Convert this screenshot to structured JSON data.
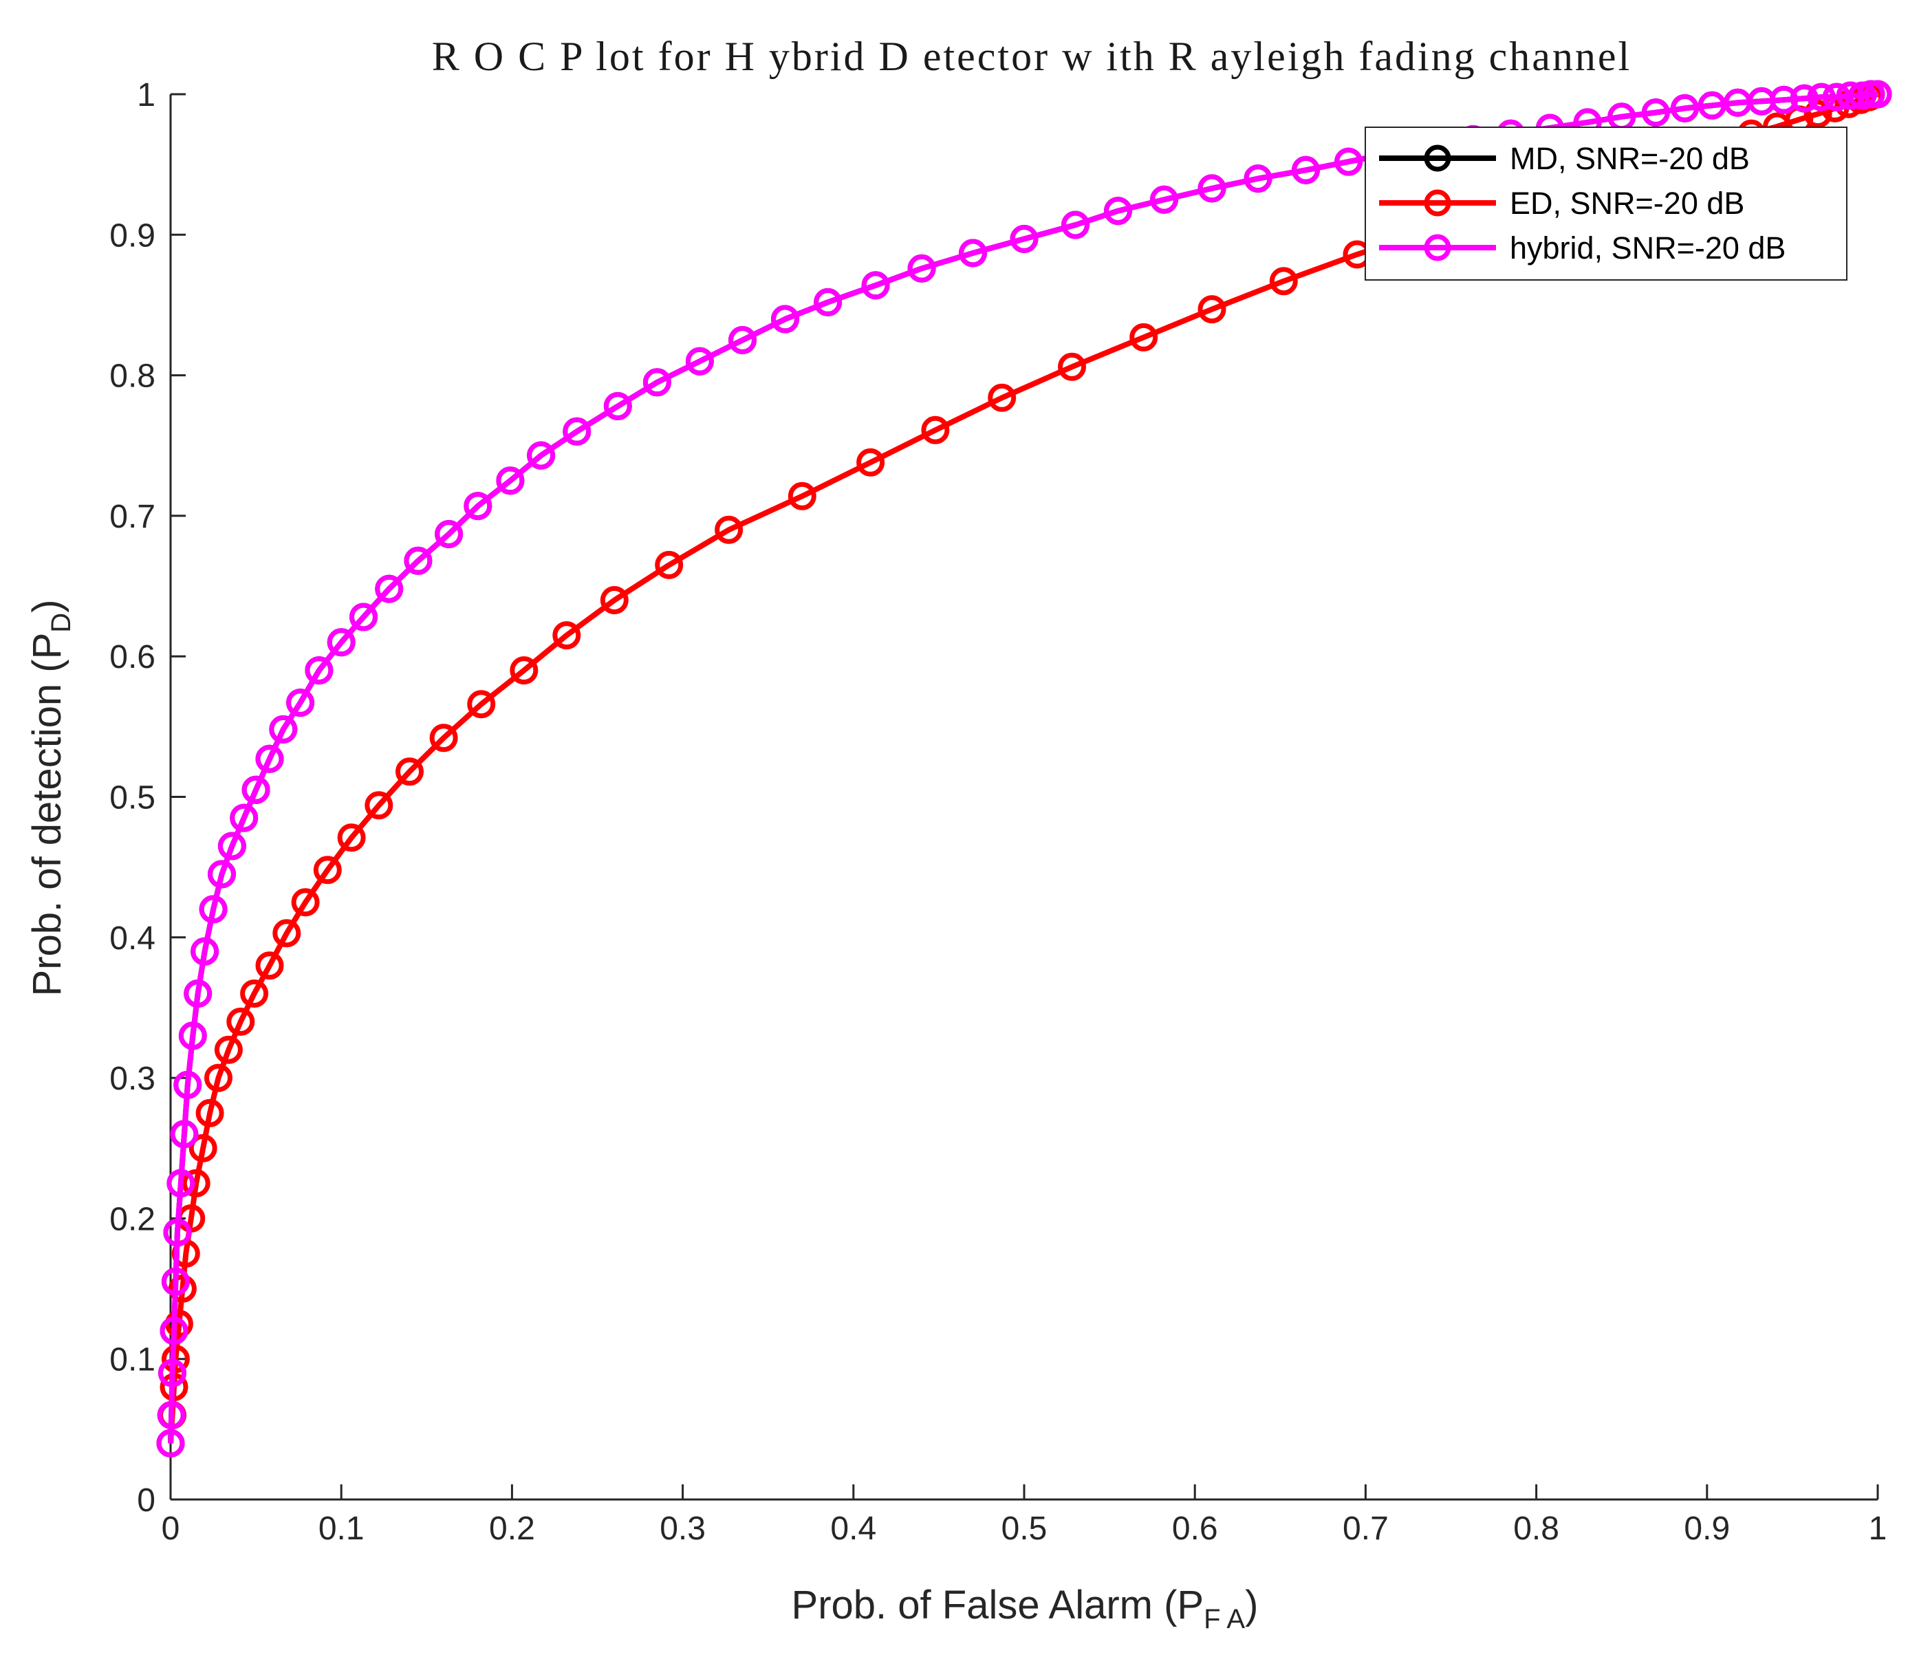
{
  "chart_data": {
    "type": "line",
    "title": "R O C  P lot for H ybrid  D etector w ith  R ayleigh  fading  channel",
    "xlabel": {
      "text": "Prob. of False Alarm (P",
      "sub": "F A",
      "suffix": ")"
    },
    "ylabel": {
      "text": "Prob. of detection (P",
      "sub": "D",
      "suffix": ")"
    },
    "xlim": [
      0,
      1
    ],
    "ylim": [
      0,
      1
    ],
    "xticks": [
      "0",
      "0.1",
      "0.2",
      "0.3",
      "0.4",
      "0.5",
      "0.6",
      "0.7",
      "0.8",
      "0.9",
      "1"
    ],
    "yticks": [
      "0",
      "0.1",
      "0.2",
      "0.3",
      "0.4",
      "0.5",
      "0.6",
      "0.7",
      "0.8",
      "0.9",
      "1"
    ],
    "grid": false,
    "legend_position": "top-right",
    "series": [
      {
        "name": "MD, SNR=-20 dB",
        "color": "#000000",
        "marker": "circle",
        "x": [
          0.0,
          0.0005,
          0.001,
          0.002,
          0.003,
          0.004,
          0.006,
          0.008,
          0.01,
          0.013,
          0.016,
          0.02,
          0.025,
          0.03,
          0.036,
          0.043,
          0.05,
          0.058,
          0.066,
          0.076,
          0.087,
          0.1,
          0.113,
          0.128,
          0.145,
          0.163,
          0.18,
          0.199,
          0.217,
          0.238,
          0.262,
          0.285,
          0.31,
          0.335,
          0.36,
          0.385,
          0.413,
          0.44,
          0.47,
          0.5,
          0.53,
          0.555,
          0.582,
          0.61,
          0.637,
          0.665,
          0.69,
          0.715,
          0.74,
          0.763,
          0.785,
          0.808,
          0.83,
          0.85,
          0.87,
          0.887,
          0.903,
          0.918,
          0.932,
          0.945,
          0.957,
          0.967,
          0.976,
          0.984,
          0.991,
          0.996,
          1.0
        ],
        "y": [
          0.04,
          0.06,
          0.09,
          0.12,
          0.155,
          0.19,
          0.225,
          0.26,
          0.295,
          0.33,
          0.36,
          0.39,
          0.42,
          0.445,
          0.465,
          0.485,
          0.505,
          0.527,
          0.548,
          0.567,
          0.59,
          0.61,
          0.628,
          0.648,
          0.668,
          0.687,
          0.707,
          0.725,
          0.743,
          0.76,
          0.778,
          0.795,
          0.81,
          0.825,
          0.84,
          0.852,
          0.864,
          0.876,
          0.887,
          0.897,
          0.907,
          0.917,
          0.925,
          0.933,
          0.94,
          0.946,
          0.952,
          0.958,
          0.963,
          0.968,
          0.972,
          0.976,
          0.98,
          0.984,
          0.987,
          0.99,
          0.992,
          0.994,
          0.995,
          0.996,
          0.997,
          0.998,
          0.998,
          0.999,
          0.999,
          1.0,
          1.0
        ]
      },
      {
        "name": "ED, SNR=-20 dB",
        "color": "#ff0000",
        "marker": "circle",
        "x": [
          0.0,
          0.001,
          0.002,
          0.003,
          0.005,
          0.007,
          0.009,
          0.012,
          0.015,
          0.019,
          0.023,
          0.028,
          0.034,
          0.041,
          0.049,
          0.058,
          0.068,
          0.079,
          0.092,
          0.106,
          0.122,
          0.14,
          0.16,
          0.182,
          0.207,
          0.232,
          0.26,
          0.292,
          0.327,
          0.37,
          0.41,
          0.448,
          0.487,
          0.528,
          0.57,
          0.61,
          0.652,
          0.695,
          0.738,
          0.776,
          0.81,
          0.84,
          0.866,
          0.889,
          0.909,
          0.926,
          0.941,
          0.954,
          0.965,
          0.975,
          0.983,
          0.99,
          0.995,
          1.0
        ],
        "y": [
          0.04,
          0.06,
          0.08,
          0.1,
          0.125,
          0.15,
          0.175,
          0.2,
          0.225,
          0.25,
          0.275,
          0.3,
          0.32,
          0.34,
          0.36,
          0.38,
          0.403,
          0.425,
          0.448,
          0.471,
          0.494,
          0.518,
          0.542,
          0.566,
          0.59,
          0.615,
          0.64,
          0.665,
          0.69,
          0.714,
          0.738,
          0.761,
          0.784,
          0.806,
          0.827,
          0.847,
          0.867,
          0.886,
          0.903,
          0.918,
          0.93,
          0.941,
          0.951,
          0.959,
          0.966,
          0.972,
          0.977,
          0.982,
          0.986,
          0.99,
          0.993,
          0.996,
          0.998,
          1.0
        ]
      },
      {
        "name": "hybrid, SNR=-20 dB",
        "color": "#ff00ff",
        "marker": "circle",
        "x": [
          0.0,
          0.0005,
          0.001,
          0.002,
          0.003,
          0.004,
          0.006,
          0.008,
          0.01,
          0.013,
          0.016,
          0.02,
          0.025,
          0.03,
          0.036,
          0.043,
          0.05,
          0.058,
          0.066,
          0.076,
          0.087,
          0.1,
          0.113,
          0.128,
          0.145,
          0.163,
          0.18,
          0.199,
          0.217,
          0.238,
          0.262,
          0.285,
          0.31,
          0.335,
          0.36,
          0.385,
          0.413,
          0.44,
          0.47,
          0.5,
          0.53,
          0.555,
          0.582,
          0.61,
          0.637,
          0.665,
          0.69,
          0.715,
          0.74,
          0.763,
          0.785,
          0.808,
          0.83,
          0.85,
          0.87,
          0.887,
          0.903,
          0.918,
          0.932,
          0.945,
          0.957,
          0.967,
          0.976,
          0.984,
          0.991,
          0.996,
          1.0
        ],
        "y": [
          0.04,
          0.06,
          0.09,
          0.12,
          0.155,
          0.19,
          0.225,
          0.26,
          0.295,
          0.33,
          0.36,
          0.39,
          0.42,
          0.445,
          0.465,
          0.485,
          0.505,
          0.527,
          0.548,
          0.567,
          0.59,
          0.61,
          0.628,
          0.648,
          0.668,
          0.687,
          0.707,
          0.725,
          0.743,
          0.76,
          0.778,
          0.795,
          0.81,
          0.825,
          0.84,
          0.852,
          0.864,
          0.876,
          0.887,
          0.897,
          0.907,
          0.917,
          0.925,
          0.933,
          0.94,
          0.946,
          0.952,
          0.958,
          0.963,
          0.968,
          0.972,
          0.976,
          0.98,
          0.984,
          0.987,
          0.99,
          0.992,
          0.994,
          0.995,
          0.996,
          0.997,
          0.998,
          0.998,
          0.999,
          0.999,
          1.0,
          1.0
        ]
      }
    ]
  }
}
